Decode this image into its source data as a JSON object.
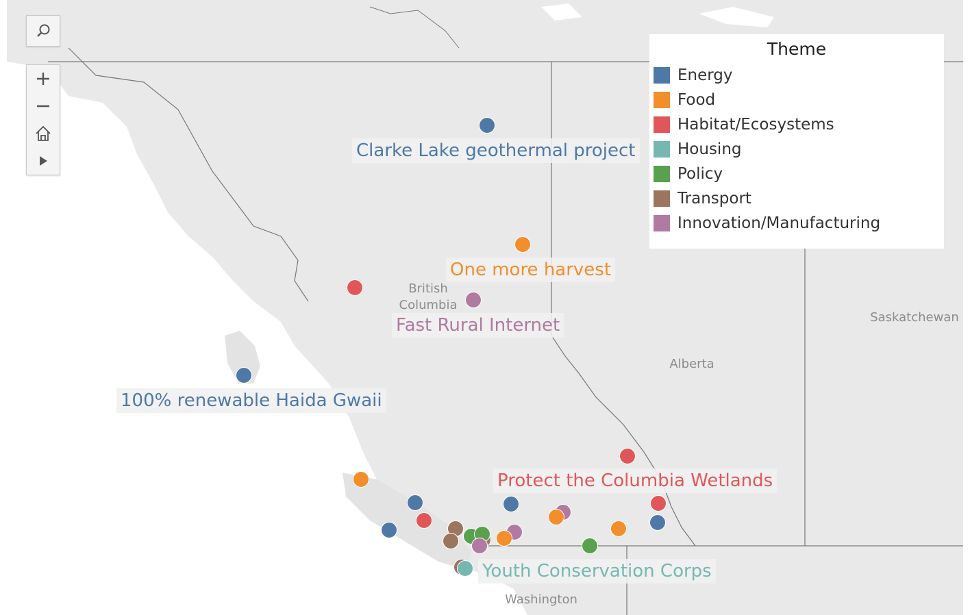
{
  "map": {
    "region_labels": [
      {
        "id": "bc",
        "lines": [
          "British",
          "Columbia"
        ]
      },
      {
        "id": "alberta",
        "lines": [
          "Alberta"
        ]
      },
      {
        "id": "saskatchewan",
        "lines": [
          "Saskatchewan"
        ]
      },
      {
        "id": "washington",
        "lines": [
          "Washington"
        ]
      }
    ]
  },
  "toolbar": {
    "search_icon": "search-icon",
    "zoom_in_icon": "plus-icon",
    "zoom_out_icon": "minus-icon",
    "home_icon": "home-icon",
    "expand_icon": "play-icon"
  },
  "legend": {
    "title": "Theme",
    "items": [
      {
        "label": "Energy",
        "color": "#4e79a7"
      },
      {
        "label": "Food",
        "color": "#f28e2b"
      },
      {
        "label": "Habitat/Ecosystems",
        "color": "#e15759"
      },
      {
        "label": "Housing",
        "color": "#76b7b2"
      },
      {
        "label": "Policy",
        "color": "#59a14f"
      },
      {
        "label": "Transport",
        "color": "#9c755f"
      },
      {
        "label": "Innovation/Manufacturing",
        "color": "#b07aa1"
      }
    ]
  },
  "marks": [
    {
      "theme": "Energy",
      "label": "Clarke Lake geothermal project"
    },
    {
      "theme": "Food",
      "label": "One more harvest"
    },
    {
      "theme": "Habitat/Ecosystems",
      "label": ""
    },
    {
      "theme": "Innovation/Manufacturing",
      "label": "Fast Rural Internet"
    },
    {
      "theme": "Energy",
      "label": "100% renewable Haida Gwaii"
    },
    {
      "theme": "Habitat/Ecosystems",
      "label": "Protect the Columbia Wetlands"
    },
    {
      "theme": "Food",
      "label": ""
    },
    {
      "theme": "Energy",
      "label": ""
    },
    {
      "theme": "Energy",
      "label": ""
    },
    {
      "theme": "Energy",
      "label": ""
    },
    {
      "theme": "Habitat/Ecosystems",
      "label": ""
    },
    {
      "theme": "Innovation/Manufacturing",
      "label": ""
    },
    {
      "theme": "Food",
      "label": ""
    },
    {
      "theme": "Habitat/Ecosystems",
      "label": ""
    },
    {
      "theme": "Energy",
      "label": ""
    },
    {
      "theme": "Transport",
      "label": ""
    },
    {
      "theme": "Transport",
      "label": ""
    },
    {
      "theme": "Policy",
      "label": ""
    },
    {
      "theme": "Transport",
      "label": ""
    },
    {
      "theme": "Policy",
      "label": ""
    },
    {
      "theme": "Innovation/Manufacturing",
      "label": ""
    },
    {
      "theme": "Innovation/Manufacturing",
      "label": ""
    },
    {
      "theme": "Food",
      "label": ""
    },
    {
      "theme": "Food",
      "label": ""
    },
    {
      "theme": "Policy",
      "label": ""
    },
    {
      "theme": "Transport",
      "label": ""
    },
    {
      "theme": "Housing",
      "label": "Youth Conservation Corps"
    }
  ]
}
